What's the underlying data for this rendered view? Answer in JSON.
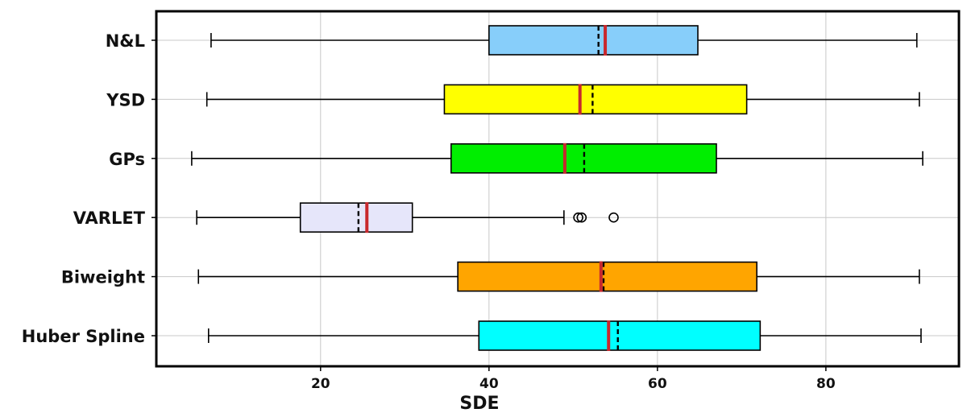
{
  "chart_data": {
    "type": "boxplot",
    "orientation": "horizontal",
    "title": "",
    "xlabel": "SDE",
    "ylabel": "",
    "xlim": [
      0.5,
      95.8
    ],
    "xticks": [
      20,
      40,
      60,
      80
    ],
    "xtick_labels": [
      "20",
      "40",
      "60",
      "80"
    ],
    "grid": true,
    "categories": [
      "N&L",
      "YSD",
      "GPs",
      "VARLET",
      "Biweight",
      "Huber Spline"
    ],
    "series": [
      {
        "label": "N&L",
        "color": "#87cefa",
        "whisker_low": 7.0,
        "q1": 40.0,
        "median": 53.8,
        "mean": 53.0,
        "q3": 64.8,
        "whisker_high": 90.8,
        "outliers": []
      },
      {
        "label": "YSD",
        "color": "#ffff00",
        "whisker_low": 6.5,
        "q1": 34.7,
        "median": 50.8,
        "mean": 52.3,
        "q3": 70.6,
        "whisker_high": 91.1,
        "outliers": []
      },
      {
        "label": "GPs",
        "color": "#00ee00",
        "whisker_low": 4.7,
        "q1": 35.5,
        "median": 49.0,
        "mean": 51.3,
        "q3": 67.0,
        "whisker_high": 91.5,
        "outliers": []
      },
      {
        "label": "VARLET",
        "color": "#e6e6fa",
        "whisker_low": 5.3,
        "q1": 17.6,
        "median": 25.5,
        "mean": 24.5,
        "q3": 30.9,
        "whisker_high": 48.9,
        "outliers": [
          50.6,
          51.0,
          54.8
        ]
      },
      {
        "label": "Biweight",
        "color": "#ffa500",
        "whisker_low": 5.5,
        "q1": 36.3,
        "median": 53.3,
        "mean": 53.6,
        "q3": 71.8,
        "whisker_high": 91.1,
        "outliers": []
      },
      {
        "label": "Huber Spline",
        "color": "#00ffff",
        "whisker_low": 6.7,
        "q1": 38.8,
        "median": 54.2,
        "mean": 55.3,
        "q3": 72.2,
        "whisker_high": 91.3,
        "outliers": []
      }
    ],
    "median_color": "#c8282d",
    "mean_style": "dashed-black"
  }
}
